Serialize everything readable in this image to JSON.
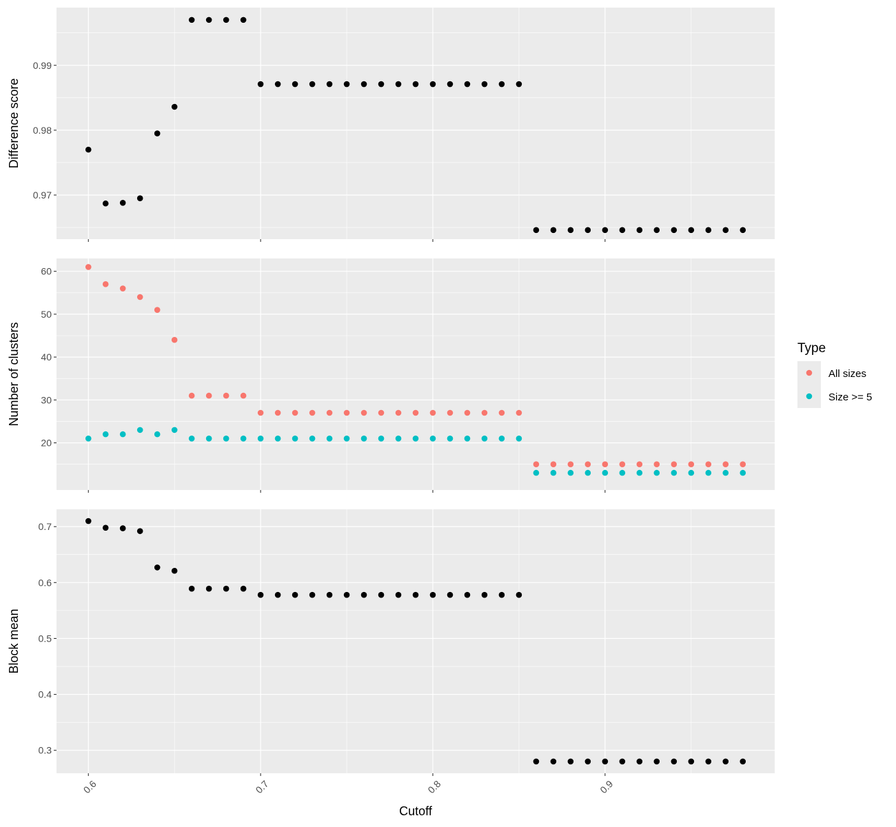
{
  "chart_data": {
    "type": "scatter",
    "xlabel": "Cutoff",
    "x_ticks": [
      "0.6",
      "0.7",
      "0.8",
      "0.9"
    ],
    "xlim": [
      0.5815,
      0.9985
    ],
    "grid": true,
    "legend": {
      "title": "Type",
      "placement": "right",
      "entries": [
        {
          "label": "All sizes",
          "color": "#F8766D"
        },
        {
          "label": "Size >= 5",
          "color": "#00BFC4"
        }
      ]
    },
    "x": [
      0.6,
      0.61,
      0.62,
      0.63,
      0.64,
      0.65,
      0.66,
      0.67,
      0.68,
      0.69,
      0.7,
      0.71,
      0.72,
      0.73,
      0.74,
      0.75,
      0.76,
      0.77,
      0.78,
      0.79,
      0.8,
      0.81,
      0.82,
      0.83,
      0.84,
      0.85,
      0.86,
      0.87,
      0.88,
      0.89,
      0.9,
      0.91,
      0.92,
      0.93,
      0.94,
      0.95,
      0.96,
      0.97,
      0.98
    ],
    "panels": [
      {
        "ylabel": "Difference score",
        "y_ticks": [
          "0.97",
          "0.98",
          "0.99"
        ],
        "ylim": [
          0.9632,
          0.9989
        ],
        "series": [
          {
            "color": "#000000",
            "values": [
              0.977,
              0.9687,
              0.9688,
              0.9695,
              0.9795,
              0.9836,
              0.997,
              0.997,
              0.997,
              0.997,
              0.9871,
              0.9871,
              0.9871,
              0.9871,
              0.9871,
              0.9871,
              0.9871,
              0.9871,
              0.9871,
              0.9871,
              0.9871,
              0.9871,
              0.9871,
              0.9871,
              0.9871,
              0.9871,
              0.9646,
              0.9646,
              0.9646,
              0.9646,
              0.9646,
              0.9646,
              0.9646,
              0.9646,
              0.9646,
              0.9646,
              0.9646,
              0.9646,
              0.9646
            ]
          }
        ]
      },
      {
        "ylabel": "Number of clusters",
        "y_ticks": [
          "20",
          "30",
          "40",
          "50",
          "60"
        ],
        "ylim": [
          9.0,
          63.0
        ],
        "series": [
          {
            "name": "All sizes",
            "color": "#F8766D",
            "values": [
              61,
              57,
              56,
              54,
              51,
              44,
              31,
              31,
              31,
              31,
              27,
              27,
              27,
              27,
              27,
              27,
              27,
              27,
              27,
              27,
              27,
              27,
              27,
              27,
              27,
              27,
              15,
              15,
              15,
              15,
              15,
              15,
              15,
              15,
              15,
              15,
              15,
              15,
              15
            ]
          },
          {
            "name": "Size >= 5",
            "color": "#00BFC4",
            "values": [
              21,
              22,
              22,
              23,
              22,
              23,
              21,
              21,
              21,
              21,
              21,
              21,
              21,
              21,
              21,
              21,
              21,
              21,
              21,
              21,
              21,
              21,
              21,
              21,
              21,
              21,
              13,
              13,
              13,
              13,
              13,
              13,
              13,
              13,
              13,
              13,
              13,
              13,
              13
            ]
          }
        ]
      },
      {
        "ylabel": "Block mean",
        "y_ticks": [
          "0.3",
          "0.4",
          "0.5",
          "0.6",
          "0.7"
        ],
        "ylim": [
          0.259,
          0.731
        ],
        "series": [
          {
            "color": "#000000",
            "values": [
              0.71,
              0.698,
              0.697,
              0.692,
              0.627,
              0.621,
              0.589,
              0.589,
              0.589,
              0.589,
              0.578,
              0.578,
              0.578,
              0.578,
              0.578,
              0.578,
              0.578,
              0.578,
              0.578,
              0.578,
              0.578,
              0.578,
              0.578,
              0.578,
              0.578,
              0.578,
              0.28,
              0.28,
              0.28,
              0.28,
              0.28,
              0.28,
              0.28,
              0.28,
              0.28,
              0.28,
              0.28,
              0.28,
              0.28
            ]
          }
        ]
      }
    ]
  }
}
